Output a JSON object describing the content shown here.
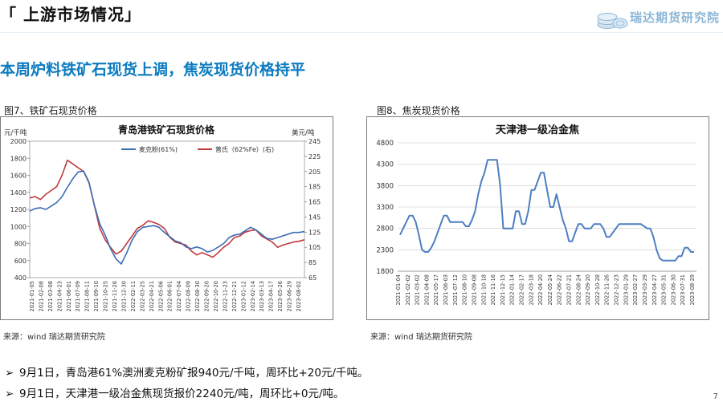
{
  "header": {
    "section_title": "「 上游市场情况」",
    "brand": "瑞达期货研究院"
  },
  "headline": "本周炉料铁矿石现货上调，焦炭现货价格持平",
  "colors": {
    "headline": "#0c7bbf",
    "series_blue": "#3d6db5",
    "series_red": "#c0393b",
    "coke_line": "#4d7fc1",
    "grid": "#d9d9d9"
  },
  "figures": {
    "iron_ore": {
      "caption": "图7、铁矿石现货价格",
      "source": "来源：wind    瑞达期货研究院"
    },
    "coke": {
      "caption": "图8、焦炭现货价格",
      "source": "来源：wind    瑞达期货研究院"
    }
  },
  "chart_data": [
    {
      "type": "line",
      "title": "青岛港铁矿石现货价格",
      "ylabel": "元/千吨",
      "y2label": "美元/吨",
      "ylim": [
        400,
        2000
      ],
      "yticks": [
        400,
        600,
        800,
        1000,
        1200,
        1400,
        1600,
        1800,
        2000
      ],
      "y2lim": [
        65,
        245
      ],
      "y2ticks": [
        65,
        85,
        105,
        125,
        145,
        165,
        185,
        205,
        225,
        245
      ],
      "legend_position": "top",
      "grid": false,
      "x_ticks": [
        "2021-01-05",
        "2021-02-08",
        "2021-03-08",
        "2021-04-23",
        "2021-06-01",
        "2021-07-09",
        "2021-08-11",
        "2021-09-10",
        "2021-10-25",
        "2021-11-26",
        "2021-12-30",
        "2022-02-11",
        "2022-03-25",
        "2022-04-21",
        "2022-05-06",
        "2022-06-01",
        "2022-07-04",
        "2022-08-09",
        "2022-08-30",
        "2022-09-20",
        "2022-10-20",
        "2022-11-23",
        "2022-12-21",
        "2023-01-12",
        "2023-02-14",
        "2023-03-13",
        "2023-04-17",
        "2023-05-26",
        "2023-06-29",
        "2023-08-02"
      ],
      "series": [
        {
          "name": "麦克粉(61%)",
          "axis": "left",
          "values": [
            1180,
            1210,
            1220,
            1200,
            1240,
            1280,
            1350,
            1460,
            1560,
            1640,
            1650,
            1520,
            1250,
            1030,
            900,
            740,
            620,
            560,
            690,
            840,
            940,
            990,
            1000,
            1010,
            990,
            930,
            880,
            830,
            810,
            760,
            740,
            760,
            740,
            700,
            720,
            760,
            800,
            870,
            900,
            910,
            950,
            990,
            960,
            910,
            860,
            850,
            870,
            890,
            910,
            930,
            930,
            940
          ]
        },
        {
          "name": "普氏（62%Fe）(右)",
          "axis": "right",
          "values": [
            170,
            172,
            168,
            175,
            180,
            185,
            200,
            220,
            215,
            210,
            205,
            190,
            160,
            130,
            115,
            105,
            96,
            100,
            110,
            120,
            130,
            134,
            140,
            138,
            135,
            130,
            118,
            112,
            110,
            108,
            100,
            95,
            98,
            95,
            92,
            98,
            105,
            110,
            118,
            120,
            125,
            127,
            128,
            120,
            116,
            112,
            105,
            108,
            110,
            112,
            113,
            115
          ]
        }
      ]
    },
    {
      "type": "line",
      "title": "天津港一级冶金焦",
      "ylim": [
        1800,
        4800
      ],
      "yticks": [
        1800,
        2300,
        2800,
        3300,
        3800,
        4300,
        4800
      ],
      "grid": true,
      "x_ticks": [
        "2021-01-04",
        "2021-02-02",
        "2021-03-02",
        "2021-04-08",
        "2021-05-17",
        "2021-06-03",
        "2021-07-12",
        "2021-08-10",
        "2021-09-08",
        "2021-10-18",
        "2021-11-16",
        "2021-12-15",
        "2022-01-14",
        "2022-02-17",
        "2022-03-18",
        "2022-04-20",
        "2022-05-24",
        "2022-06-22",
        "2022-07-21",
        "2022-08-24",
        "2022-09-20",
        "2022-10-28",
        "2022-11-26",
        "2022-12-23",
        "2023-01-29",
        "2023-02-27",
        "2023-03-29",
        "2023-04-27",
        "2023-05-31",
        "2023-06-30",
        "2023-07-31",
        "2023-08-29"
      ],
      "series": [
        {
          "name": "天津港一级冶金焦",
          "values": [
            2650,
            2800,
            2950,
            3100,
            3100,
            2950,
            2650,
            2300,
            2250,
            2250,
            2350,
            2500,
            2700,
            2900,
            3100,
            3100,
            2950,
            2950,
            2950,
            2950,
            2950,
            2850,
            2850,
            3000,
            3200,
            3600,
            3900,
            4100,
            4400,
            4400,
            4400,
            4400,
            3800,
            2800,
            2800,
            2800,
            2800,
            3200,
            3200,
            2900,
            2900,
            3200,
            3700,
            3700,
            3900,
            4100,
            4100,
            3700,
            3300,
            3300,
            3600,
            3300,
            3000,
            2800,
            2500,
            2500,
            2700,
            2900,
            2900,
            2800,
            2800,
            2800,
            2900,
            2900,
            2900,
            2800,
            2600,
            2600,
            2700,
            2800,
            2900,
            2900,
            2900,
            2900,
            2900,
            2900,
            2900,
            2900,
            2850,
            2800,
            2800,
            2600,
            2300,
            2100,
            2050,
            2050,
            2050,
            2050,
            2050,
            2150,
            2150,
            2350,
            2350,
            2250,
            2250
          ]
        }
      ]
    }
  ],
  "bullets": [
    "9月1日，青岛港61%澳洲麦克粉矿报940元/千吨，周环比+20元/千吨。",
    "9月1日，天津港一级冶金焦现货报价2240元/吨，周环比+0元/吨。"
  ],
  "bullet_marker": "➢",
  "page_number": "7"
}
